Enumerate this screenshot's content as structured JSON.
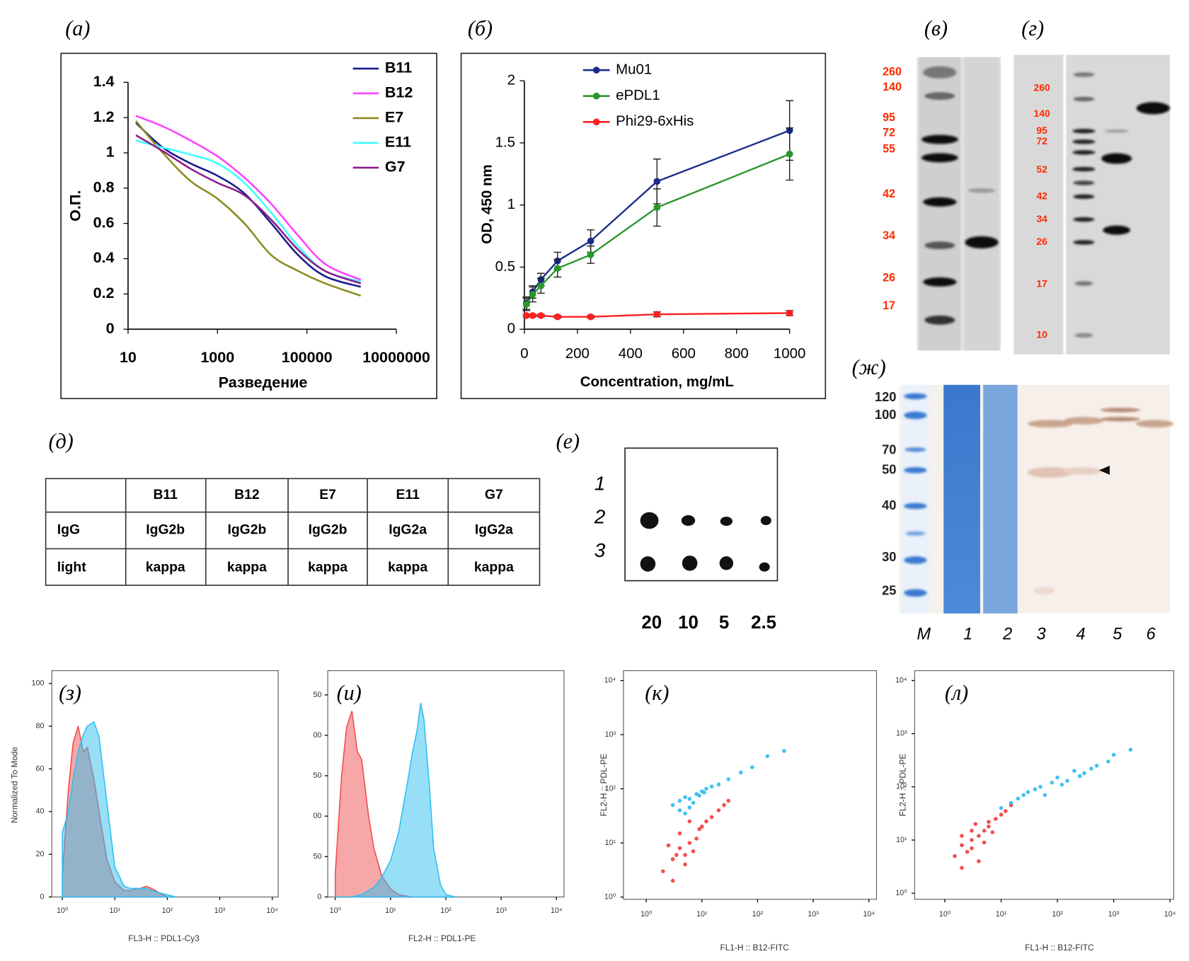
{
  "chart_data": [
    {
      "type": "line",
      "panel_label": "(а)",
      "xlabel": "Разведение",
      "ylabel": "О.П.",
      "xscale": "log",
      "x": [
        15,
        60,
        250,
        1000,
        4000,
        16000,
        64000,
        256000,
        1600000
      ],
      "series": [
        {
          "name": "B11",
          "color": "#1c1c8c",
          "values": [
            1.17,
            1.03,
            0.94,
            0.87,
            0.77,
            0.6,
            0.42,
            0.3,
            0.24
          ]
        },
        {
          "name": "B12",
          "color": "#ff40ff",
          "values": [
            1.21,
            1.15,
            1.07,
            0.98,
            0.86,
            0.71,
            0.53,
            0.37,
            0.28
          ]
        },
        {
          "name": "E7",
          "color": "#8c8c20",
          "values": [
            1.18,
            1.0,
            0.84,
            0.74,
            0.6,
            0.42,
            0.33,
            0.26,
            0.19
          ]
        },
        {
          "name": "E11",
          "color": "#40ffff",
          "values": [
            1.07,
            1.03,
            0.99,
            0.94,
            0.83,
            0.66,
            0.47,
            0.33,
            0.27
          ]
        },
        {
          "name": "G7",
          "color": "#8c1c8c",
          "values": [
            1.1,
            1.01,
            0.91,
            0.83,
            0.76,
            0.62,
            0.45,
            0.33,
            0.26
          ]
        }
      ],
      "xlim": [
        10,
        10000000
      ],
      "xticks": [
        10,
        1000,
        100000,
        10000000
      ],
      "ylim": [
        0,
        1.4
      ],
      "yticks": [
        0,
        0.2,
        0.4,
        0.6,
        0.8,
        1,
        1.2,
        1.4
      ],
      "legend": "upper right"
    },
    {
      "type": "line",
      "panel_label": "(б)",
      "xlabel": "Concentration, mg/mL",
      "ylabel": "OD, 450 nm",
      "x": [
        7.8,
        31.25,
        62.5,
        125,
        250,
        500,
        1000
      ],
      "series": [
        {
          "name": "Mu01",
          "color": "#1a2a8c",
          "values": [
            0.21,
            0.3,
            0.4,
            0.55,
            0.71,
            1.19,
            1.6
          ],
          "errors": [
            0.05,
            0.05,
            0.05,
            0.07,
            0.09,
            0.18,
            0.24
          ]
        },
        {
          "name": "ePDL1",
          "color": "#2a962a",
          "values": [
            0.2,
            0.28,
            0.35,
            0.49,
            0.6,
            0.98,
            1.41
          ],
          "errors": [
            0.05,
            0.06,
            0.06,
            0.07,
            0.07,
            0.15,
            0.21
          ]
        },
        {
          "name": "Phi29-6xHis",
          "color": "#ff2020",
          "values": [
            0.11,
            0.11,
            0.11,
            0.1,
            0.1,
            0.12,
            0.13
          ],
          "errors": [
            0.01,
            0.01,
            0.01,
            0.01,
            0.01,
            0.02,
            0.02
          ]
        }
      ],
      "xlim": [
        0,
        1000
      ],
      "xticks": [
        0,
        200,
        400,
        600,
        800,
        1000
      ],
      "ylim": [
        0,
        2
      ],
      "yticks": [
        0,
        0.5,
        1,
        1.5,
        2
      ],
      "legend": "upper left"
    },
    {
      "type": "area",
      "panel_label": "(з)",
      "xlabel": "FL3-H :: PDL1-Cy3",
      "ylabel": "Normalized To Mode",
      "xscale": "log",
      "x": [
        1,
        1.3,
        1.6,
        2,
        2.5,
        3,
        4,
        5,
        7,
        10,
        15,
        20,
        30,
        40,
        50,
        70,
        100,
        150
      ],
      "series": [
        {
          "color": "#f05050",
          "values": [
            10,
            50,
            72,
            80,
            68,
            70,
            55,
            40,
            18,
            7,
            3,
            3,
            4,
            5,
            4,
            2,
            0,
            0
          ]
        },
        {
          "color": "#30c0f0",
          "values": [
            30,
            40,
            55,
            68,
            76,
            80,
            82,
            75,
            45,
            14,
            5,
            4,
            4,
            4,
            3,
            2,
            1,
            0
          ]
        }
      ],
      "xlim": [
        0.63,
        13000
      ],
      "xticks": [
        {
          "value": 1,
          "label": "10⁰"
        },
        {
          "value": 10,
          "label": "10¹"
        },
        {
          "value": 100,
          "label": "10²"
        },
        {
          "value": 1000,
          "label": "10³"
        },
        {
          "value": 10000,
          "label": "10⁴"
        }
      ],
      "ylim": [
        0,
        106
      ],
      "yticks": [
        0,
        20,
        40,
        60,
        80,
        100
      ]
    },
    {
      "type": "area",
      "panel_label": "(и)",
      "xlabel": "FL2-H :: PDL1-PE",
      "xscale": "log",
      "x": [
        1,
        1.3,
        1.6,
        2,
        2.5,
        3,
        4,
        5,
        7,
        10,
        14,
        20,
        25,
        30,
        35,
        40,
        50,
        60,
        80,
        100,
        150
      ],
      "series": [
        {
          "color": "#f05050",
          "values": [
            30,
            150,
            210,
            230,
            180,
            170,
            100,
            60,
            25,
            10,
            3,
            1,
            0,
            0,
            0,
            0,
            0,
            0,
            0,
            0,
            0
          ]
        },
        {
          "color": "#30c0f0",
          "values": [
            0,
            0,
            0,
            0,
            2,
            3,
            8,
            12,
            25,
            45,
            80,
            140,
            180,
            205,
            240,
            220,
            140,
            60,
            15,
            3,
            0
          ]
        }
      ],
      "xlim": [
        0.73,
        13700
      ],
      "xticks": [
        {
          "value": 1,
          "label": "10⁰"
        },
        {
          "value": 10,
          "label": "10¹"
        },
        {
          "value": 100,
          "label": "10²"
        },
        {
          "value": 1000,
          "label": "10³"
        },
        {
          "value": 10000,
          "label": "10⁴"
        }
      ],
      "ylim": [
        0,
        280
      ],
      "yticks": [
        0,
        50,
        {
          "value": 100,
          "label": "00"
        },
        {
          "value": 150,
          "label": "50"
        },
        {
          "value": 200,
          "label": "00"
        },
        {
          "value": 250,
          "label": "50"
        }
      ]
    },
    {
      "type": "scatter",
      "panel_label": "(к)",
      "xlabel": "FL1-H :: B12-FITC",
      "ylabel": "FL2-H :: PDL-PE",
      "xscale": "log",
      "yscale": "log",
      "series": [
        {
          "color": "#20b8ee",
          "x": [
            3,
            4,
            5,
            6,
            8,
            10,
            12,
            15,
            20,
            5,
            7,
            9,
            30,
            50,
            80,
            150,
            300,
            4,
            6,
            11
          ],
          "values": [
            50,
            60,
            70,
            45,
            80,
            90,
            100,
            110,
            120,
            35,
            55,
            75,
            150,
            200,
            250,
            400,
            500,
            40,
            65,
            85
          ]
        },
        {
          "color": "#f03030",
          "x": [
            2,
            3,
            4,
            3,
            5,
            6,
            8,
            10,
            5,
            4,
            2.5,
            7,
            12,
            15,
            20,
            9,
            6,
            3.5,
            25,
            30
          ],
          "values": [
            3,
            5,
            8,
            2,
            6,
            10,
            12,
            20,
            4,
            15,
            9,
            7,
            25,
            30,
            40,
            18,
            25,
            6,
            50,
            60
          ]
        }
      ],
      "xlim": [
        0.39,
        13700
      ],
      "ylim": [
        0.91,
        15200
      ],
      "xticks": [
        {
          "value": 1,
          "label": "10⁰"
        },
        {
          "value": 10,
          "label": "10¹"
        },
        {
          "value": 100,
          "label": "10²"
        },
        {
          "value": 1000,
          "label": "10³"
        },
        {
          "value": 10000,
          "label": "10⁴"
        }
      ],
      "yticks": [
        {
          "value": 1,
          "label": "10⁰"
        },
        {
          "value": 10,
          "label": "10¹"
        },
        {
          "value": 100,
          "label": "10²"
        },
        {
          "value": 1000,
          "label": "10³"
        },
        {
          "value": 10000,
          "label": "10⁴"
        }
      ]
    },
    {
      "type": "scatter",
      "panel_label": "(л)",
      "xlabel": "FL1-H :: B12-FITC",
      "ylabel": "FL2-H :: PDL-PE",
      "xscale": "log",
      "yscale": "log",
      "series": [
        {
          "color": "#f03030",
          "x": [
            1.5,
            2,
            3,
            4,
            5,
            2.5,
            3.5,
            6,
            8,
            10,
            4,
            3,
            2,
            5,
            7,
            12,
            15,
            2,
            3,
            6
          ],
          "values": [
            5,
            8,
            10,
            12,
            15,
            6,
            20,
            18,
            25,
            30,
            4,
            7,
            3,
            9,
            14,
            35,
            45,
            12,
            15,
            22
          ]
        },
        {
          "color": "#20b8ee",
          "x": [
            10,
            20,
            30,
            50,
            80,
            100,
            150,
            200,
            300,
            500,
            800,
            1000,
            15,
            40,
            60,
            120,
            250,
            400,
            2000,
            25
          ],
          "values": [
            40,
            60,
            80,
            100,
            120,
            150,
            130,
            200,
            180,
            250,
            300,
            400,
            50,
            90,
            70,
            110,
            160,
            220,
            500,
            70
          ]
        }
      ],
      "xlim": [
        0.29,
        11700
      ],
      "ylim": [
        0.77,
        15300
      ],
      "xticks": [
        {
          "value": 1,
          "label": "10⁰"
        },
        {
          "value": 10,
          "label": "10¹"
        },
        {
          "value": 100,
          "label": "10²"
        },
        {
          "value": 1000,
          "label": "10³"
        },
        {
          "value": 10000,
          "label": "10⁴"
        }
      ],
      "yticks": [
        {
          "value": 1,
          "label": "10⁰"
        },
        {
          "value": 10,
          "label": "10¹"
        },
        {
          "value": 100,
          "label": "10²"
        },
        {
          "value": 1000,
          "label": "10³"
        },
        {
          "value": 10000,
          "label": "10⁴"
        }
      ]
    }
  ],
  "gels": [
    {
      "panel_label": "(в)",
      "markers": [
        "260",
        "140",
        "95",
        "72",
        "55",
        "42",
        "34",
        "26",
        "17"
      ]
    },
    {
      "panel_label": "(г)",
      "markers": [
        "260",
        "140",
        "95",
        "72",
        "52",
        "42",
        "34",
        "26",
        "17",
        "10"
      ]
    },
    {
      "panel_label": "(ж)",
      "markers": [
        "120",
        "100",
        "70",
        "50",
        "40",
        "30",
        "25"
      ],
      "lanes": [
        "M",
        "1",
        "2",
        "3",
        "4",
        "5",
        "6"
      ]
    }
  ],
  "table": {
    "panel_label": "(д)",
    "header": [
      "B11",
      "B12",
      "E7",
      "E11",
      "G7"
    ],
    "rows": [
      [
        "IgG",
        "IgG2b",
        "IgG2b",
        "IgG2b",
        "IgG2a",
        "IgG2a"
      ],
      [
        "light",
        "kappa",
        "kappa",
        "kappa",
        "kappa",
        "kappa"
      ]
    ]
  },
  "dot_blot": {
    "panel_label": "(е)",
    "row_labels": [
      "1",
      "2",
      "3"
    ],
    "column_labels": [
      "20",
      "10",
      "5",
      "2.5"
    ]
  }
}
